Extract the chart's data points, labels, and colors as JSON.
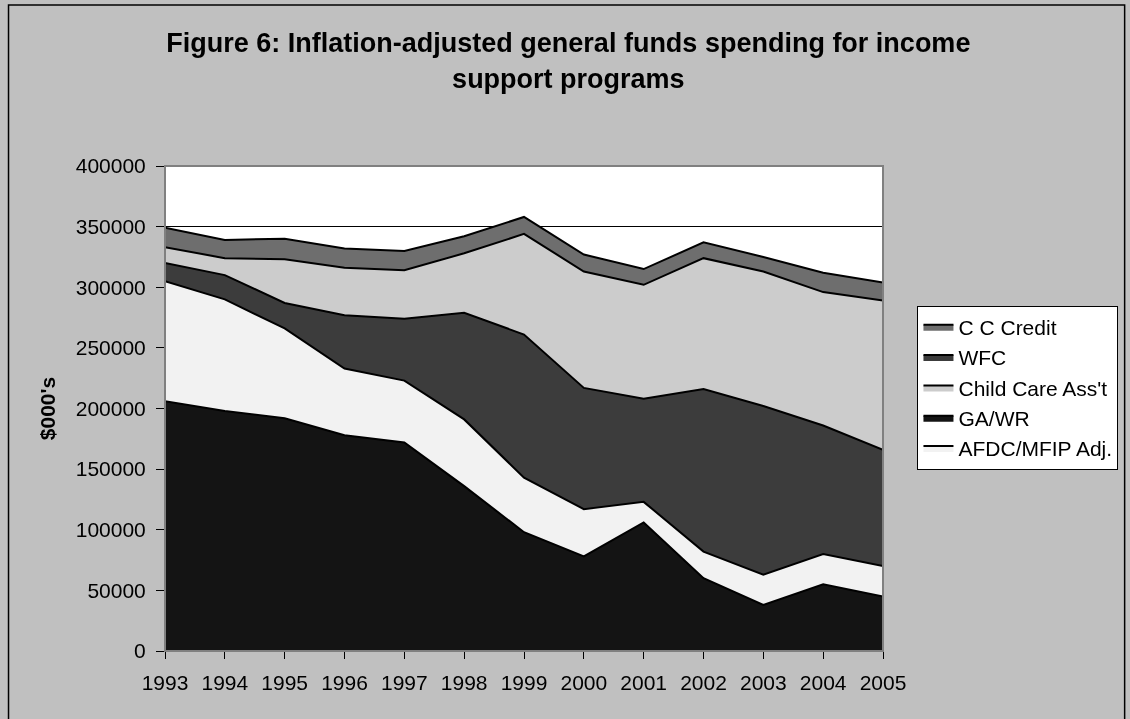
{
  "chart_data": {
    "type": "area",
    "title": "Figure 6: Inflation-adjusted general funds spending for income support programs",
    "ylabel": "$000's",
    "categories": [
      "1993",
      "1994",
      "1995",
      "1996",
      "1997",
      "1998",
      "1999",
      "2000",
      "2001",
      "2002",
      "2003",
      "2004",
      "2005"
    ],
    "stacked": true,
    "series": [
      {
        "name": "GA/WR",
        "color": "#141414",
        "values": [
          206000,
          198000,
          192000,
          178000,
          172000,
          136000,
          98000,
          78000,
          106000,
          60000,
          38000,
          55000,
          45000
        ]
      },
      {
        "name": "AFDC/MFIP Adj.",
        "color": "#f2f2f2",
        "values": [
          99000,
          92000,
          74000,
          55000,
          51000,
          55000,
          45000,
          39000,
          17000,
          22000,
          25000,
          25000,
          25000
        ]
      },
      {
        "name": "WFC",
        "color": "#3c3c3c",
        "values": [
          15000,
          20000,
          21000,
          44000,
          51000,
          88000,
          118000,
          100000,
          85000,
          134000,
          139000,
          106000,
          96000
        ]
      },
      {
        "name": "Child Care Ass't",
        "color": "#cccccc",
        "values": [
          13000,
          14000,
          36000,
          39000,
          40000,
          49000,
          83000,
          96000,
          94000,
          108000,
          111000,
          110000,
          123000
        ]
      },
      {
        "name": "C C Credit",
        "color": "#6e6e6e",
        "values": [
          16000,
          15000,
          17000,
          16000,
          16000,
          14000,
          14000,
          14000,
          13000,
          13000,
          12000,
          16000,
          15000
        ]
      }
    ],
    "ylim": [
      0,
      400000
    ],
    "yticks": [
      0,
      50000,
      100000,
      150000,
      200000,
      250000,
      300000,
      350000,
      400000
    ],
    "grid": "y",
    "legend": "right"
  }
}
